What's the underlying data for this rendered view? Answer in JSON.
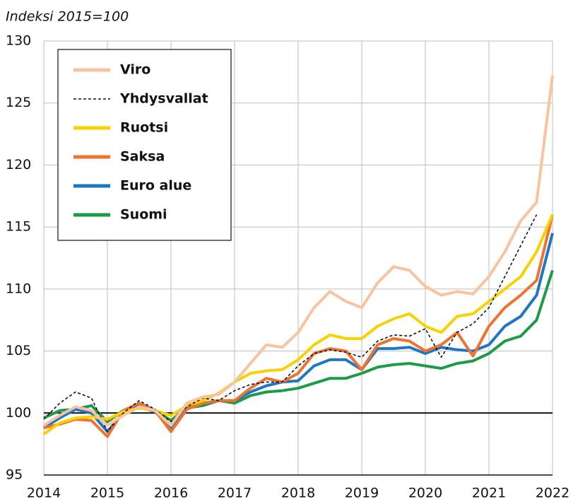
{
  "chart_data": {
    "type": "line",
    "y_label": "Indeksi 2015=100",
    "x": [
      2014,
      2014.25,
      2014.5,
      2014.75,
      2015,
      2015.25,
      2015.5,
      2015.75,
      2016,
      2016.25,
      2016.5,
      2016.75,
      2017,
      2017.25,
      2017.5,
      2017.75,
      2018,
      2018.25,
      2018.5,
      2018.75,
      2019,
      2019.25,
      2019.5,
      2019.75,
      2020,
      2020.25,
      2020.5,
      2020.75,
      2021,
      2021.25,
      2021.5,
      2021.75,
      2022
    ],
    "series": [
      {
        "name": "Viro",
        "color": "#f8c4a0",
        "values": [
          99,
          99.8,
          100.5,
          100.2,
          99,
          99.8,
          100.5,
          100.2,
          99,
          100.8,
          101.3,
          101.5,
          102.5,
          104,
          105.5,
          105.3,
          106.5,
          108.5,
          109.8,
          109,
          108.5,
          110.5,
          111.8,
          111.5,
          110.2,
          109.5,
          109.8,
          109.6,
          111,
          113,
          115.5,
          117,
          127.2
        ]
      },
      {
        "name": "Yhdysvallat",
        "color": "#111111",
        "line_style": "dashed",
        "values": [
          99.5,
          100.8,
          101.7,
          101.2,
          98.5,
          100,
          101,
          100.3,
          99.3,
          100.5,
          101.2,
          101,
          101.8,
          102.3,
          102.5,
          102.5,
          103.8,
          104.8,
          105.1,
          104.9,
          104.5,
          105.8,
          106.3,
          106.2,
          106.8,
          104.5,
          106.5,
          107.2,
          108.5,
          111,
          113.5,
          116,
          null
        ]
      },
      {
        "name": "Ruotsi",
        "color": "#f8d200",
        "values": [
          98.3,
          99.2,
          99.6,
          99.7,
          99.5,
          100.1,
          100.4,
          100.2,
          99.8,
          100.6,
          101,
          101.6,
          102.5,
          103.2,
          103.4,
          103.5,
          104.3,
          105.5,
          106.3,
          106,
          106,
          107,
          107.6,
          108,
          107,
          106.5,
          107.8,
          108,
          109,
          110,
          111,
          113,
          116
        ]
      },
      {
        "name": "Saksa",
        "color": "#ee7331",
        "values": [
          98.8,
          99.1,
          99.5,
          99.4,
          98.1,
          100.2,
          100.8,
          100.2,
          98.5,
          100.3,
          100.8,
          101,
          101,
          102,
          102.8,
          102.5,
          103.2,
          104.8,
          105.2,
          105,
          103.5,
          105.5,
          106,
          105.8,
          105,
          105.5,
          106.5,
          104.6,
          107,
          108.5,
          109.5,
          110.7,
          116
        ]
      },
      {
        "name": "Euro alue",
        "color": "#1f77c4",
        "values": [
          98.8,
          99.6,
          100.3,
          100,
          98.5,
          100,
          100.5,
          100.1,
          98.8,
          100.5,
          100.8,
          101,
          101,
          101.7,
          102.2,
          102.5,
          102.6,
          103.8,
          104.3,
          104.3,
          103.5,
          105.2,
          105.2,
          105.3,
          104.8,
          105.3,
          105.1,
          105,
          105.5,
          107,
          107.8,
          109.5,
          114.5
        ]
      },
      {
        "name": "Suomi",
        "color": "#1e9a4a",
        "values": [
          99.6,
          100.2,
          100.3,
          100.6,
          99.3,
          100.2,
          100.6,
          100.2,
          99.4,
          100.4,
          100.6,
          101,
          100.8,
          101.4,
          101.7,
          101.8,
          102,
          102.4,
          102.8,
          102.8,
          103.2,
          103.7,
          103.9,
          104,
          103.8,
          103.6,
          104,
          104.2,
          104.8,
          105.8,
          106.2,
          107.5,
          111.5
        ]
      }
    ],
    "xlim": [
      2014,
      2022
    ],
    "xticks": [
      2014,
      2015,
      2016,
      2017,
      2018,
      2019,
      2020,
      2021,
      2022
    ],
    "ylim": [
      95,
      130
    ],
    "yticks": [
      95,
      100,
      105,
      110,
      115,
      120,
      125,
      130
    ],
    "reference_line": 100,
    "grid": true,
    "legend": "upper left"
  }
}
